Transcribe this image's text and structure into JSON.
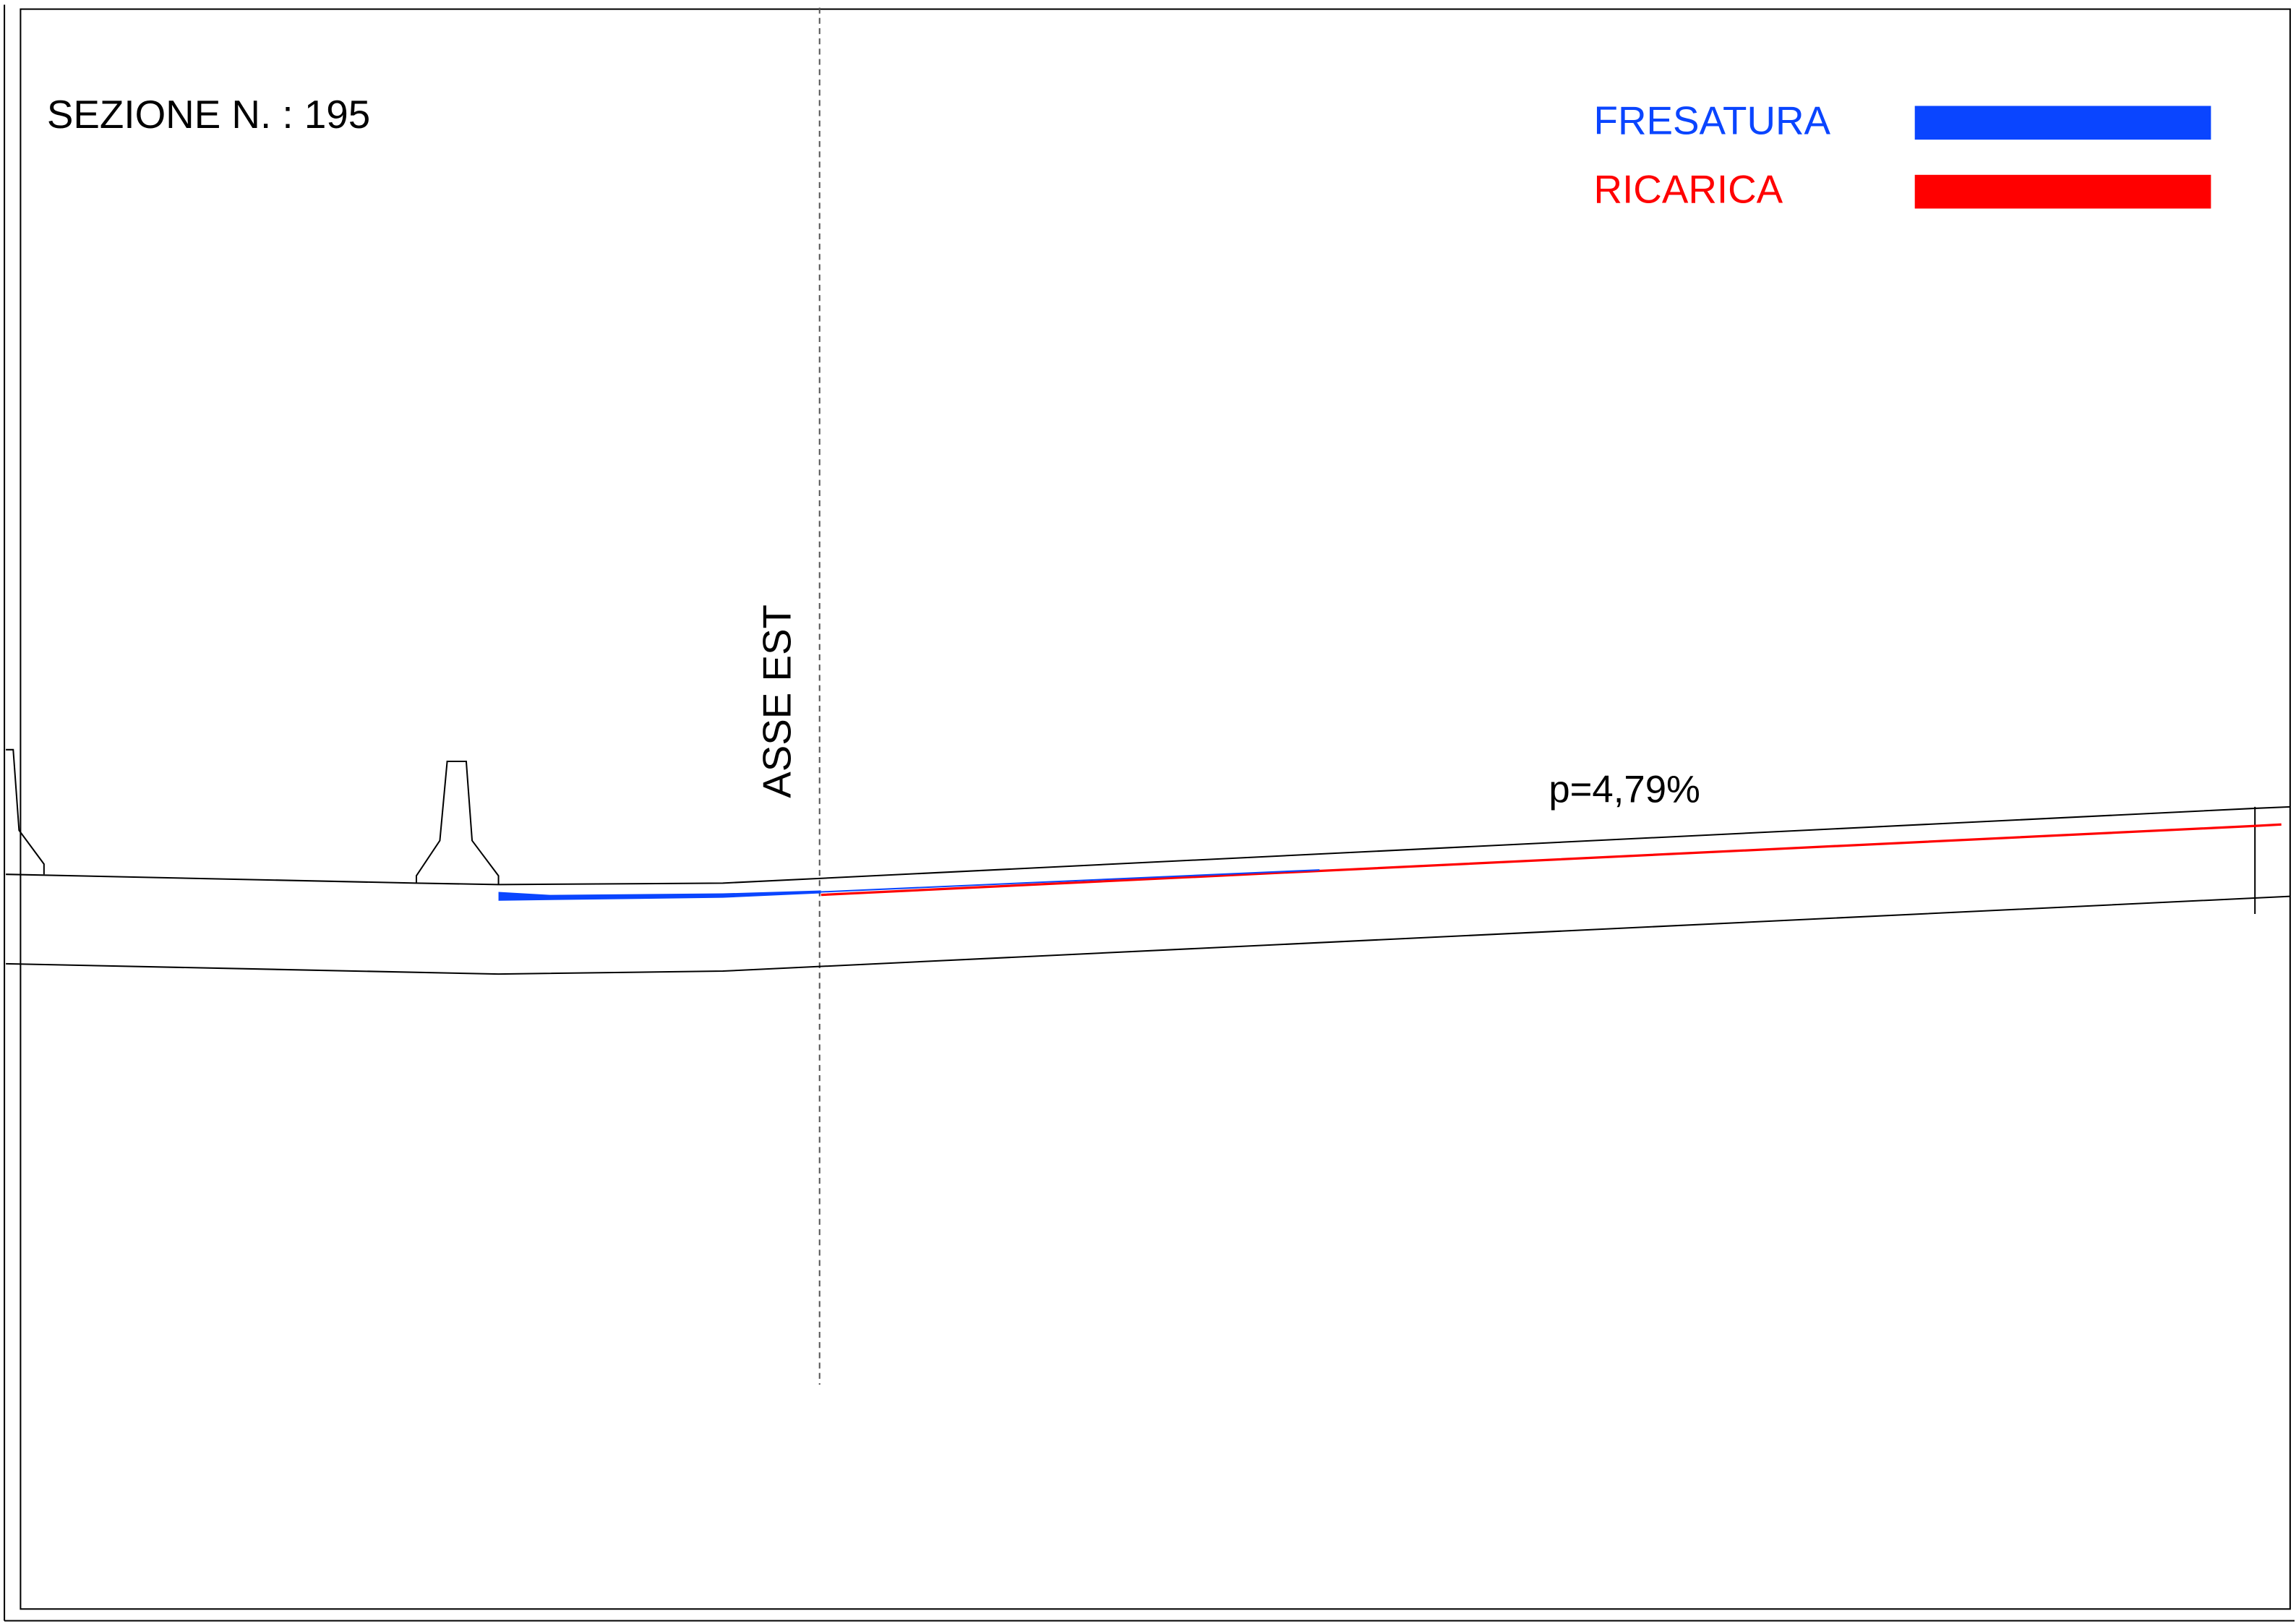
{
  "section": {
    "title": "SEZIONE N. : 195",
    "axis_label": "ASSE EST",
    "slope_label": "p=4,79%"
  },
  "legend": [
    {
      "name": "FRESATURA",
      "color": "#0a45ff"
    },
    {
      "name": "RICARICA",
      "color": "#ff0000"
    }
  ]
}
